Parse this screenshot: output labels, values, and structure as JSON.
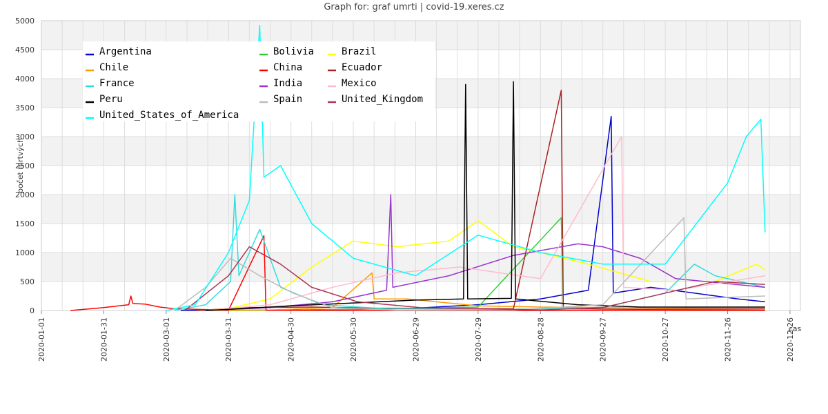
{
  "chart_data": {
    "type": "line",
    "title": "Graph for: graf umrti | covid-19.xeres.cz",
    "xlabel": "cas",
    "ylabel": "počet mrtvých",
    "x_type": "date",
    "xlim": [
      "2020-01-01",
      "2020-12-31"
    ],
    "ylim": [
      0,
      5000
    ],
    "y_ticks": [
      0,
      500,
      1000,
      1500,
      2000,
      2500,
      3000,
      3500,
      4000,
      4500,
      5000
    ],
    "x_ticks": [
      "2020-01-01",
      "2020-01-31",
      "2020-03-01",
      "2020-03-31",
      "2020-04-30",
      "2020-05-30",
      "2020-06-29",
      "2020-07-29",
      "2020-08-28",
      "2020-09-27",
      "2020-10-27",
      "2020-11-26",
      "2020-12-26"
    ],
    "grid": true,
    "legend_position": "top-left",
    "series": [
      {
        "name": "Argentina",
        "color": "#0000cc",
        "points": [
          [
            "2020-03-08",
            0
          ],
          [
            "2020-04-01",
            3
          ],
          [
            "2020-05-01",
            8
          ],
          [
            "2020-06-01",
            20
          ],
          [
            "2020-06-29",
            40
          ],
          [
            "2020-07-29",
            100
          ],
          [
            "2020-08-28",
            200
          ],
          [
            "2020-09-20",
            350
          ],
          [
            "2020-10-01",
            3350
          ],
          [
            "2020-10-02",
            300
          ],
          [
            "2020-10-20",
            400
          ],
          [
            "2020-11-10",
            300
          ],
          [
            "2020-12-01",
            200
          ],
          [
            "2020-12-14",
            150
          ]
        ]
      },
      {
        "name": "Bolivia",
        "color": "#33cc33",
        "points": [
          [
            "2020-03-29",
            0
          ],
          [
            "2020-05-01",
            5
          ],
          [
            "2020-06-15",
            30
          ],
          [
            "2020-07-29",
            60
          ],
          [
            "2020-09-07",
            1600
          ],
          [
            "2020-09-08",
            30
          ],
          [
            "2020-10-15",
            20
          ],
          [
            "2020-12-14",
            10
          ]
        ]
      },
      {
        "name": "Brazil",
        "color": "#ffff00",
        "points": [
          [
            "2020-03-17",
            0
          ],
          [
            "2020-04-01",
            40
          ],
          [
            "2020-04-20",
            200
          ],
          [
            "2020-05-10",
            750
          ],
          [
            "2020-05-30",
            1200
          ],
          [
            "2020-06-20",
            1100
          ],
          [
            "2020-07-15",
            1200
          ],
          [
            "2020-07-29",
            1550
          ],
          [
            "2020-08-15",
            1100
          ],
          [
            "2020-08-28",
            1000
          ],
          [
            "2020-09-20",
            800
          ],
          [
            "2020-10-20",
            500
          ],
          [
            "2020-11-20",
            500
          ],
          [
            "2020-12-10",
            800
          ],
          [
            "2020-12-14",
            700
          ]
        ]
      },
      {
        "name": "Chile",
        "color": "#ff9900",
        "points": [
          [
            "2020-03-22",
            0
          ],
          [
            "2020-04-20",
            10
          ],
          [
            "2020-05-20",
            50
          ],
          [
            "2020-06-08",
            650
          ],
          [
            "2020-06-09",
            200
          ],
          [
            "2020-06-25",
            200
          ],
          [
            "2020-07-29",
            80
          ],
          [
            "2020-08-28",
            60
          ],
          [
            "2020-09-27",
            50
          ],
          [
            "2020-10-27",
            40
          ],
          [
            "2020-12-14",
            60
          ]
        ]
      },
      {
        "name": "China",
        "color": "#ff0000",
        "points": [
          [
            "2020-01-15",
            0
          ],
          [
            "2020-01-31",
            50
          ],
          [
            "2020-02-12",
            100
          ],
          [
            "2020-02-13",
            250
          ],
          [
            "2020-02-14",
            120
          ],
          [
            "2020-02-20",
            110
          ],
          [
            "2020-02-27",
            60
          ],
          [
            "2020-03-05",
            30
          ],
          [
            "2020-03-15",
            20
          ],
          [
            "2020-03-31",
            5
          ],
          [
            "2020-04-17",
            1290
          ],
          [
            "2020-04-18",
            5
          ],
          [
            "2020-05-10",
            0
          ],
          [
            "2020-12-14",
            0
          ]
        ]
      },
      {
        "name": "Ecuador",
        "color": "#aa2222",
        "points": [
          [
            "2020-03-15",
            0
          ],
          [
            "2020-04-10",
            50
          ],
          [
            "2020-05-10",
            60
          ],
          [
            "2020-06-10",
            40
          ],
          [
            "2020-08-15",
            30
          ],
          [
            "2020-09-07",
            3800
          ],
          [
            "2020-09-08",
            30
          ],
          [
            "2020-10-15",
            20
          ],
          [
            "2020-12-14",
            30
          ]
        ]
      },
      {
        "name": "France",
        "color": "#33dddd",
        "points": [
          [
            "2020-03-05",
            0
          ],
          [
            "2020-03-20",
            100
          ],
          [
            "2020-04-01",
            500
          ],
          [
            "2020-04-03",
            2000
          ],
          [
            "2020-04-05",
            600
          ],
          [
            "2020-04-15",
            1400
          ],
          [
            "2020-04-25",
            400
          ],
          [
            "2020-05-15",
            100
          ],
          [
            "2020-06-15",
            30
          ],
          [
            "2020-08-15",
            20
          ],
          [
            "2020-09-27",
            50
          ],
          [
            "2020-10-27",
            300
          ],
          [
            "2020-11-10",
            800
          ],
          [
            "2020-11-20",
            600
          ],
          [
            "2020-12-14",
            400
          ]
        ]
      },
      {
        "name": "India",
        "color": "#9933cc",
        "points": [
          [
            "2020-03-20",
            0
          ],
          [
            "2020-04-20",
            50
          ],
          [
            "2020-05-20",
            150
          ],
          [
            "2020-06-15",
            350
          ],
          [
            "2020-06-17",
            2000
          ],
          [
            "2020-06-18",
            400
          ],
          [
            "2020-07-15",
            600
          ],
          [
            "2020-08-15",
            950
          ],
          [
            "2020-09-15",
            1150
          ],
          [
            "2020-09-27",
            1100
          ],
          [
            "2020-10-15",
            900
          ],
          [
            "2020-11-01",
            550
          ],
          [
            "2020-12-14",
            400
          ]
        ]
      },
      {
        "name": "Mexico",
        "color": "#ffbbcc",
        "points": [
          [
            "2020-03-20",
            0
          ],
          [
            "2020-04-20",
            100
          ],
          [
            "2020-05-20",
            400
          ],
          [
            "2020-06-20",
            650
          ],
          [
            "2020-07-20",
            750
          ],
          [
            "2020-08-28",
            550
          ],
          [
            "2020-10-06",
            3000
          ],
          [
            "2020-10-07",
            400
          ],
          [
            "2020-11-01",
            350
          ],
          [
            "2020-12-14",
            600
          ]
        ]
      },
      {
        "name": "Peru",
        "color": "#000000",
        "points": [
          [
            "2020-03-20",
            0
          ],
          [
            "2020-04-30",
            80
          ],
          [
            "2020-05-30",
            130
          ],
          [
            "2020-06-29",
            180
          ],
          [
            "2020-07-22",
            200
          ],
          [
            "2020-07-23",
            3900
          ],
          [
            "2020-07-24",
            200
          ],
          [
            "2020-08-14",
            210
          ],
          [
            "2020-08-15",
            3950
          ],
          [
            "2020-08-16",
            200
          ],
          [
            "2020-09-15",
            100
          ],
          [
            "2020-10-15",
            60
          ],
          [
            "2020-12-14",
            60
          ]
        ]
      },
      {
        "name": "Spain",
        "color": "#bbbbbb",
        "points": [
          [
            "2020-03-05",
            0
          ],
          [
            "2020-03-20",
            400
          ],
          [
            "2020-04-01",
            900
          ],
          [
            "2020-04-15",
            600
          ],
          [
            "2020-05-01",
            300
          ],
          [
            "2020-05-20",
            50
          ],
          [
            "2020-06-20",
            5
          ],
          [
            "2020-08-15",
            10
          ],
          [
            "2020-09-27",
            100
          ],
          [
            "2020-11-05",
            1600
          ],
          [
            "2020-11-06",
            200
          ],
          [
            "2020-12-14",
            250
          ]
        ]
      },
      {
        "name": "United_Kingdom",
        "color": "#aa3355",
        "points": [
          [
            "2020-03-10",
            0
          ],
          [
            "2020-03-31",
            600
          ],
          [
            "2020-04-10",
            1100
          ],
          [
            "2020-04-25",
            800
          ],
          [
            "2020-05-10",
            400
          ],
          [
            "2020-06-01",
            150
          ],
          [
            "2020-07-01",
            50
          ],
          [
            "2020-08-28",
            10
          ],
          [
            "2020-09-27",
            50
          ],
          [
            "2020-10-27",
            300
          ],
          [
            "2020-11-20",
            500
          ],
          [
            "2020-12-14",
            450
          ]
        ]
      },
      {
        "name": "United_States_of_America",
        "color": "#00ffff",
        "points": [
          [
            "2020-03-01",
            0
          ],
          [
            "2020-03-15",
            100
          ],
          [
            "2020-03-31",
            1000
          ],
          [
            "2020-04-10",
            1900
          ],
          [
            "2020-04-15",
            4920
          ],
          [
            "2020-04-17",
            2300
          ],
          [
            "2020-04-25",
            2500
          ],
          [
            "2020-05-10",
            1500
          ],
          [
            "2020-05-30",
            900
          ],
          [
            "2020-06-29",
            600
          ],
          [
            "2020-07-29",
            1300
          ],
          [
            "2020-08-28",
            1000
          ],
          [
            "2020-09-27",
            800
          ],
          [
            "2020-10-27",
            800
          ],
          [
            "2020-11-26",
            2200
          ],
          [
            "2020-12-05",
            3000
          ],
          [
            "2020-12-12",
            3300
          ],
          [
            "2020-12-14",
            1350
          ]
        ]
      }
    ]
  }
}
